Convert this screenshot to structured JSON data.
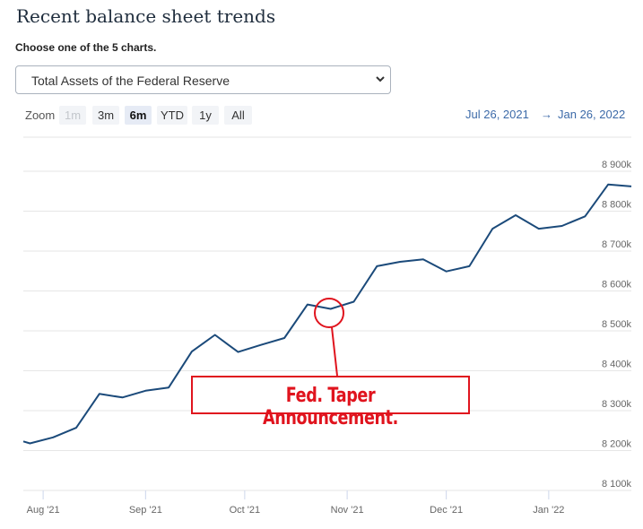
{
  "header": {
    "title": "Recent balance sheet trends",
    "subtitle": "Choose one of the 5 charts."
  },
  "selector": {
    "selected": "Total Assets of the Federal Reserve",
    "icon": "chevron-down-icon"
  },
  "zoom": {
    "label": "Zoom",
    "buttons": [
      {
        "label": "1m",
        "state": "disabled"
      },
      {
        "label": "3m",
        "state": "normal"
      },
      {
        "label": "6m",
        "state": "active"
      },
      {
        "label": "YTD",
        "state": "normal"
      },
      {
        "label": "1y",
        "state": "normal"
      },
      {
        "label": "All",
        "state": "normal"
      }
    ]
  },
  "range": {
    "from": "Jul 26, 2021",
    "arrow": "→",
    "to": "Jan 26, 2022"
  },
  "annotation": {
    "text": "Fed. Taper Announcement.",
    "color": "#e0141e"
  },
  "colors": {
    "line": "#1b4a7a",
    "accent": "#3c6aa8",
    "grid": "#e6e6e6"
  },
  "chart_data": {
    "type": "line",
    "ylim": [
      8100000,
      8900000
    ],
    "y_ticks": [
      8100000,
      8200000,
      8300000,
      8400000,
      8500000,
      8600000,
      8700000,
      8800000,
      8900000
    ],
    "y_tick_labels": [
      "8 100k",
      "8 200k",
      "8 300k",
      "8 400k",
      "8 500k",
      "8 600k",
      "8 700k",
      "8 800k",
      "8 900k"
    ],
    "x_ticks": [
      "2021-08-01",
      "2021-09-01",
      "2021-10-01",
      "2021-11-01",
      "2021-12-01",
      "2022-01-01"
    ],
    "x_tick_labels": [
      "Aug '21",
      "Sep '21",
      "Oct '21",
      "Nov '21",
      "Dec '21",
      "Jan '22"
    ],
    "xlim": [
      "2021-07-26",
      "2022-01-26"
    ],
    "series": [
      {
        "x": [
          "2021-07-26",
          "2021-07-28",
          "2021-08-04",
          "2021-08-11",
          "2021-08-18",
          "2021-08-25",
          "2021-09-01",
          "2021-09-08",
          "2021-09-15",
          "2021-09-22",
          "2021-09-29",
          "2021-10-06",
          "2021-10-13",
          "2021-10-20",
          "2021-10-27",
          "2021-11-03",
          "2021-11-10",
          "2021-11-17",
          "2021-11-24",
          "2021-12-01",
          "2021-12-08",
          "2021-12-15",
          "2021-12-22",
          "2021-12-29",
          "2022-01-05",
          "2022-01-12",
          "2022-01-19",
          "2022-01-26"
        ],
        "y": [
          8223000,
          8218000,
          8233000,
          8257000,
          8342000,
          8333000,
          8350000,
          8358000,
          8448000,
          8490000,
          8447000,
          8465000,
          8482000,
          8566000,
          8555000,
          8573000,
          8662000,
          8673000,
          8679000,
          8649000,
          8662000,
          8756000,
          8790000,
          8756000,
          8763000,
          8787000,
          8867000,
          8862000
        ]
      }
    ]
  }
}
